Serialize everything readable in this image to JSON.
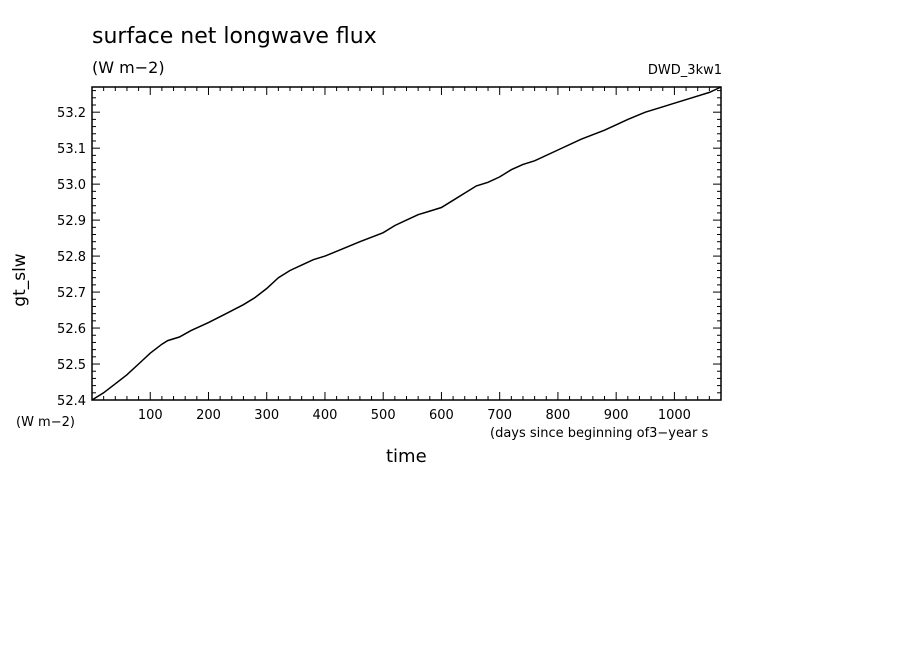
{
  "header": {
    "title": "surface net longwave flux",
    "units": "(W m−2)",
    "run_id": "DWD_3kw1"
  },
  "axes": {
    "y_name": "gt_slw",
    "y_units": "(W m−2)",
    "x_name": "time",
    "x_units": "(days since beginning of3−year s"
  },
  "colors": {
    "line": "#000000",
    "frame": "#000000",
    "background": "#ffffff"
  },
  "chart_data": {
    "type": "line",
    "title": "surface net longwave flux",
    "xlabel": "time",
    "ylabel": "gt_slw",
    "xlim": [
      0,
      1080
    ],
    "ylim": [
      52.4,
      53.27
    ],
    "x_ticks": [
      100,
      200,
      300,
      400,
      500,
      600,
      700,
      800,
      900,
      1000
    ],
    "x_tick_labels": [
      "100",
      "200",
      "300",
      "400",
      "500",
      "600",
      "700",
      "800",
      "900",
      "1000"
    ],
    "y_ticks": [
      52.4,
      52.5,
      52.6,
      52.7,
      52.8,
      52.9,
      53.0,
      53.1,
      53.2
    ],
    "y_tick_labels": [
      "52.4",
      "52.5",
      "52.6",
      "52.7",
      "52.8",
      "52.9",
      "53.0",
      "53.1",
      "53.2"
    ],
    "grid": false,
    "series": [
      {
        "x": [
          0,
          20,
          40,
          60,
          80,
          100,
          120,
          130,
          150,
          170,
          200,
          230,
          260,
          280,
          300,
          320,
          340,
          360,
          380,
          400,
          430,
          460,
          500,
          520,
          540,
          560,
          580,
          600,
          620,
          640,
          660,
          680,
          700,
          720,
          740,
          760,
          800,
          840,
          880,
          900,
          920,
          950,
          980,
          1000,
          1030,
          1060,
          1080
        ],
        "y": [
          52.4,
          52.42,
          52.445,
          52.47,
          52.5,
          52.53,
          52.555,
          52.565,
          52.575,
          52.593,
          52.615,
          52.64,
          52.665,
          52.685,
          52.71,
          52.74,
          52.76,
          52.775,
          52.79,
          52.8,
          52.82,
          52.84,
          52.865,
          52.885,
          52.9,
          52.915,
          52.925,
          52.935,
          52.955,
          52.975,
          52.995,
          53.005,
          53.02,
          53.04,
          53.055,
          53.065,
          53.095,
          53.125,
          53.15,
          53.165,
          53.18,
          53.2,
          53.215,
          53.225,
          53.24,
          53.255,
          53.27
        ]
      }
    ]
  }
}
